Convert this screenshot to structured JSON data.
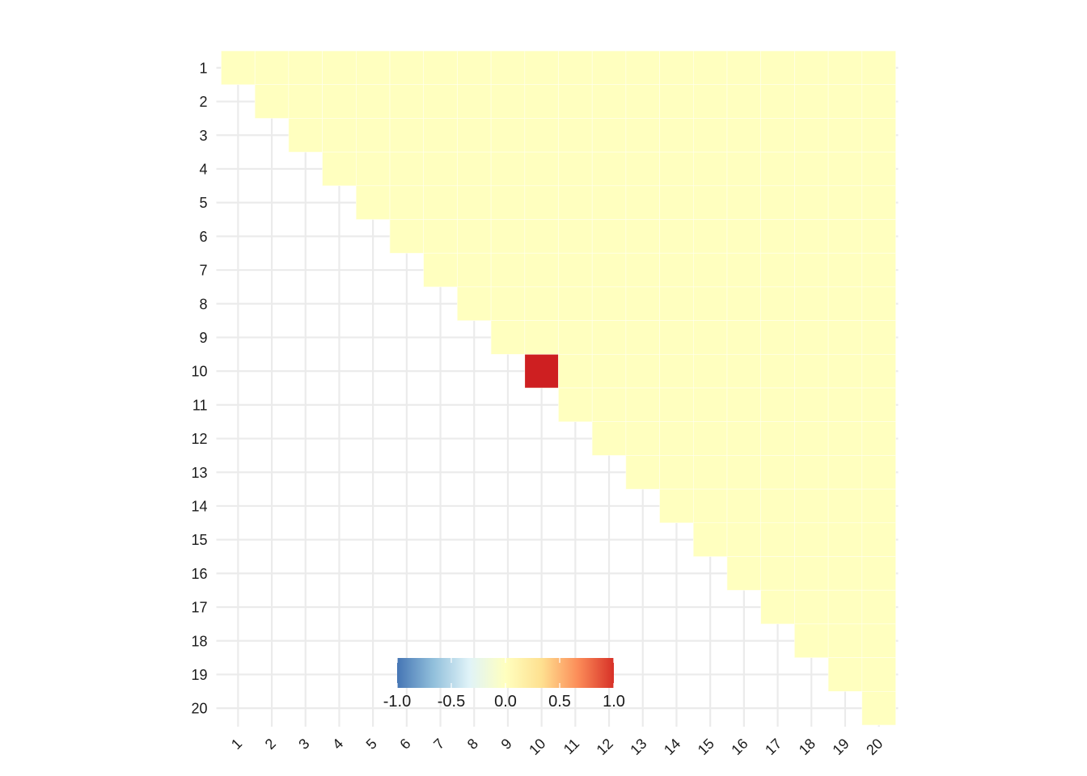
{
  "chart_data": {
    "type": "heatmap",
    "title": "",
    "xlabel": "",
    "ylabel": "",
    "x_categories": [
      "1",
      "2",
      "3",
      "4",
      "5",
      "6",
      "7",
      "8",
      "9",
      "10",
      "11",
      "12",
      "13",
      "14",
      "15",
      "16",
      "17",
      "18",
      "19",
      "20"
    ],
    "y_categories": [
      "1",
      "2",
      "3",
      "4",
      "5",
      "6",
      "7",
      "8",
      "9",
      "10",
      "11",
      "12",
      "13",
      "14",
      "15",
      "16",
      "17",
      "18",
      "19",
      "20"
    ],
    "layout": "upper-triangle including diagonal (cells where column >= row)",
    "default_value": 0.05,
    "highlight_cells": [
      {
        "row": "10",
        "col": "10",
        "value": 1.0
      }
    ],
    "color_scale": {
      "range": [
        -1.0,
        1.0
      ],
      "palette": [
        "#4575b4",
        "#91bfdb",
        "#e0f3f8",
        "#ffffbf",
        "#fee090",
        "#fc8d59",
        "#d73027"
      ],
      "ticks": [
        "-1.0",
        "-0.5",
        "0.0",
        "0.5",
        "1.0"
      ]
    },
    "legend_placement": "bottom-center inside plot",
    "grid": true,
    "x_tick_rotation": "45deg"
  },
  "colors": {
    "background": "#ffffff",
    "gridline": "#ebebeb",
    "cell_fill": "#ffffbf",
    "highlight_fill": "#ce1f21"
  }
}
